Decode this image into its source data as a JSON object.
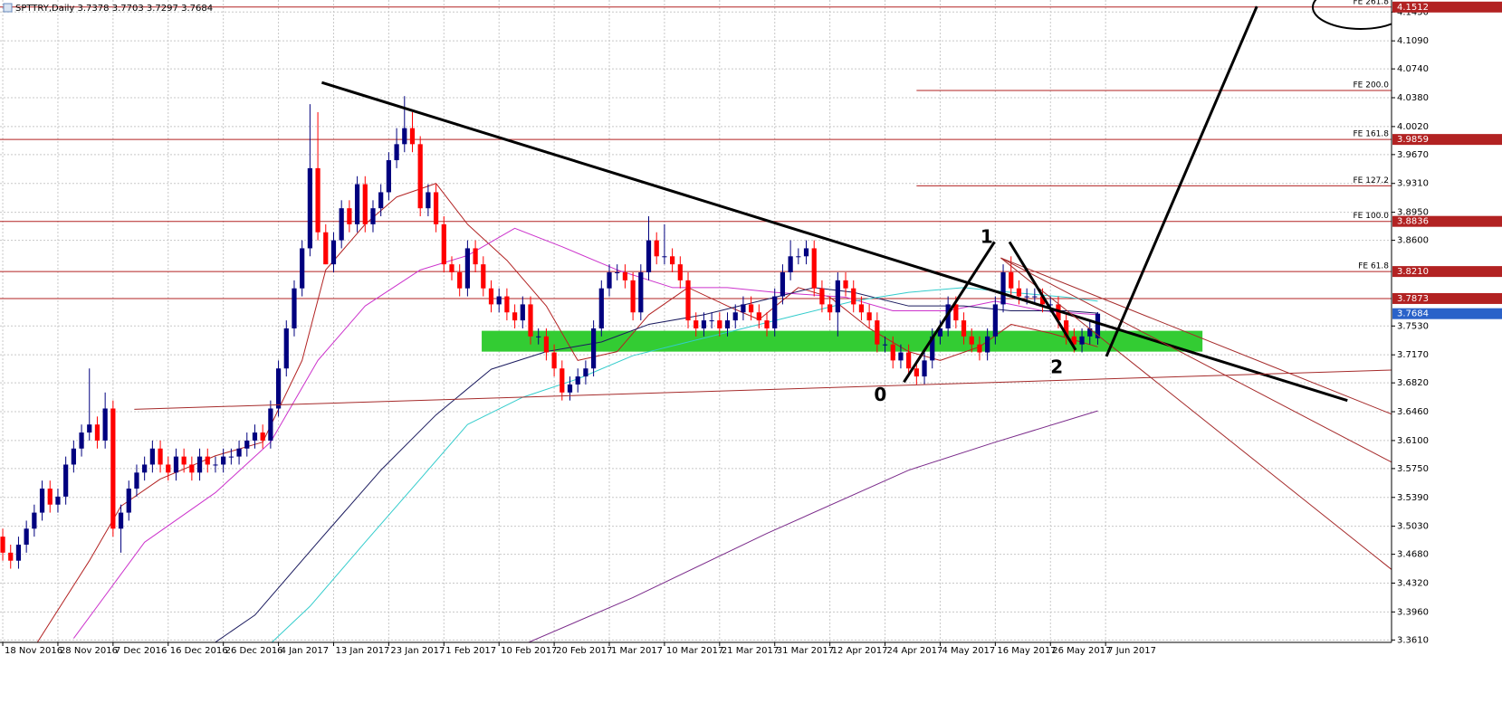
{
  "header": {
    "symbol": "SPTTRY,Daily"
  },
  "chart_data": {
    "type": "candlestick",
    "bull_color": "#00007f",
    "bear_color": "#ff0000",
    "ohlc": [
      [
        3.49,
        3.5,
        3.46,
        3.47
      ],
      [
        3.47,
        3.48,
        3.45,
        3.46
      ],
      [
        3.46,
        3.49,
        3.45,
        3.48
      ],
      [
        3.48,
        3.51,
        3.47,
        3.5
      ],
      [
        3.5,
        3.53,
        3.49,
        3.52
      ],
      [
        3.52,
        3.56,
        3.51,
        3.55
      ],
      [
        3.55,
        3.56,
        3.52,
        3.53
      ],
      [
        3.53,
        3.55,
        3.52,
        3.54
      ],
      [
        3.54,
        3.59,
        3.53,
        3.58
      ],
      [
        3.58,
        3.61,
        3.57,
        3.6
      ],
      [
        3.6,
        3.63,
        3.59,
        3.62
      ],
      [
        3.62,
        3.7,
        3.61,
        3.63
      ],
      [
        3.63,
        3.64,
        3.6,
        3.61
      ],
      [
        3.61,
        3.67,
        3.6,
        3.65
      ],
      [
        3.65,
        3.66,
        3.49,
        3.5
      ],
      [
        3.5,
        3.53,
        3.47,
        3.52
      ],
      [
        3.52,
        3.56,
        3.51,
        3.55
      ],
      [
        3.55,
        3.58,
        3.54,
        3.57
      ],
      [
        3.57,
        3.59,
        3.56,
        3.58
      ],
      [
        3.58,
        3.61,
        3.57,
        3.6
      ],
      [
        3.6,
        3.61,
        3.57,
        3.58
      ],
      [
        3.58,
        3.59,
        3.56,
        3.57
      ],
      [
        3.57,
        3.6,
        3.56,
        3.59
      ],
      [
        3.59,
        3.6,
        3.57,
        3.58
      ],
      [
        3.58,
        3.59,
        3.56,
        3.57
      ],
      [
        3.57,
        3.6,
        3.56,
        3.59
      ],
      [
        3.59,
        3.6,
        3.57,
        3.58
      ],
      [
        3.58,
        3.59,
        3.57,
        3.58
      ],
      [
        3.58,
        3.6,
        3.57,
        3.59
      ],
      [
        3.59,
        3.6,
        3.58,
        3.59
      ],
      [
        3.59,
        3.61,
        3.58,
        3.6
      ],
      [
        3.6,
        3.62,
        3.59,
        3.61
      ],
      [
        3.61,
        3.63,
        3.6,
        3.62
      ],
      [
        3.62,
        3.63,
        3.6,
        3.61
      ],
      [
        3.61,
        3.66,
        3.6,
        3.65
      ],
      [
        3.65,
        3.71,
        3.64,
        3.7
      ],
      [
        3.7,
        3.76,
        3.69,
        3.75
      ],
      [
        3.75,
        3.81,
        3.74,
        3.8
      ],
      [
        3.8,
        3.86,
        3.79,
        3.85
      ],
      [
        3.85,
        4.03,
        3.84,
        3.95
      ],
      [
        3.95,
        4.02,
        3.86,
        3.87
      ],
      [
        3.87,
        3.88,
        3.83,
        3.83
      ],
      [
        3.83,
        3.87,
        3.82,
        3.86
      ],
      [
        3.86,
        3.91,
        3.85,
        3.9
      ],
      [
        3.9,
        3.91,
        3.87,
        3.88
      ],
      [
        3.88,
        3.94,
        3.87,
        3.93
      ],
      [
        3.93,
        3.94,
        3.87,
        3.88
      ],
      [
        3.88,
        3.91,
        3.87,
        3.9
      ],
      [
        3.9,
        3.93,
        3.89,
        3.92
      ],
      [
        3.92,
        3.97,
        3.91,
        3.96
      ],
      [
        3.96,
        4.0,
        3.95,
        3.98
      ],
      [
        3.98,
        4.04,
        3.97,
        4.0
      ],
      [
        4.0,
        4.02,
        3.97,
        3.98
      ],
      [
        3.98,
        3.99,
        3.89,
        3.9
      ],
      [
        3.9,
        3.93,
        3.89,
        3.92
      ],
      [
        3.92,
        3.93,
        3.87,
        3.88
      ],
      [
        3.88,
        3.89,
        3.82,
        3.83
      ],
      [
        3.83,
        3.84,
        3.81,
        3.82
      ],
      [
        3.82,
        3.83,
        3.79,
        3.8
      ],
      [
        3.8,
        3.86,
        3.79,
        3.85
      ],
      [
        3.85,
        3.86,
        3.82,
        3.83
      ],
      [
        3.83,
        3.84,
        3.79,
        3.8
      ],
      [
        3.8,
        3.81,
        3.77,
        3.78
      ],
      [
        3.78,
        3.8,
        3.77,
        3.79
      ],
      [
        3.79,
        3.8,
        3.76,
        3.77
      ],
      [
        3.77,
        3.78,
        3.75,
        3.76
      ],
      [
        3.76,
        3.79,
        3.75,
        3.78
      ],
      [
        3.78,
        3.79,
        3.73,
        3.74
      ],
      [
        3.74,
        3.75,
        3.73,
        3.74
      ],
      [
        3.74,
        3.75,
        3.71,
        3.72
      ],
      [
        3.72,
        3.73,
        3.69,
        3.7
      ],
      [
        3.7,
        3.71,
        3.66,
        3.67
      ],
      [
        3.67,
        3.69,
        3.66,
        3.68
      ],
      [
        3.68,
        3.7,
        3.67,
        3.69
      ],
      [
        3.69,
        3.71,
        3.68,
        3.7
      ],
      [
        3.7,
        3.76,
        3.69,
        3.75
      ],
      [
        3.75,
        3.81,
        3.74,
        3.8
      ],
      [
        3.8,
        3.83,
        3.79,
        3.82
      ],
      [
        3.82,
        3.83,
        3.81,
        3.82
      ],
      [
        3.82,
        3.83,
        3.8,
        3.81
      ],
      [
        3.81,
        3.82,
        3.76,
        3.77
      ],
      [
        3.77,
        3.83,
        3.76,
        3.82
      ],
      [
        3.82,
        3.89,
        3.81,
        3.86
      ],
      [
        3.86,
        3.87,
        3.83,
        3.84
      ],
      [
        3.84,
        3.88,
        3.83,
        3.84
      ],
      [
        3.84,
        3.85,
        3.82,
        3.83
      ],
      [
        3.83,
        3.84,
        3.8,
        3.81
      ],
      [
        3.81,
        3.82,
        3.75,
        3.76
      ],
      [
        3.76,
        3.77,
        3.74,
        3.75
      ],
      [
        3.75,
        3.77,
        3.74,
        3.76
      ],
      [
        3.76,
        3.77,
        3.75,
        3.76
      ],
      [
        3.76,
        3.77,
        3.74,
        3.75
      ],
      [
        3.75,
        3.77,
        3.74,
        3.76
      ],
      [
        3.76,
        3.78,
        3.75,
        3.77
      ],
      [
        3.77,
        3.79,
        3.76,
        3.78
      ],
      [
        3.78,
        3.79,
        3.76,
        3.77
      ],
      [
        3.77,
        3.78,
        3.75,
        3.76
      ],
      [
        3.76,
        3.77,
        3.74,
        3.75
      ],
      [
        3.75,
        3.8,
        3.74,
        3.79
      ],
      [
        3.79,
        3.83,
        3.78,
        3.82
      ],
      [
        3.82,
        3.86,
        3.81,
        3.84
      ],
      [
        3.84,
        3.85,
        3.83,
        3.84
      ],
      [
        3.84,
        3.86,
        3.83,
        3.85
      ],
      [
        3.85,
        3.86,
        3.79,
        3.8
      ],
      [
        3.8,
        3.81,
        3.77,
        3.78
      ],
      [
        3.78,
        3.79,
        3.76,
        3.77
      ],
      [
        3.77,
        3.82,
        3.74,
        3.81
      ],
      [
        3.81,
        3.82,
        3.79,
        3.8
      ],
      [
        3.8,
        3.81,
        3.77,
        3.78
      ],
      [
        3.78,
        3.79,
        3.76,
        3.77
      ],
      [
        3.77,
        3.78,
        3.75,
        3.76
      ],
      [
        3.76,
        3.77,
        3.72,
        3.73
      ],
      [
        3.73,
        3.74,
        3.72,
        3.73
      ],
      [
        3.73,
        3.74,
        3.7,
        3.71
      ],
      [
        3.71,
        3.73,
        3.7,
        3.72
      ],
      [
        3.72,
        3.73,
        3.69,
        3.7
      ],
      [
        3.7,
        3.71,
        3.68,
        3.69
      ],
      [
        3.69,
        3.72,
        3.68,
        3.71
      ],
      [
        3.71,
        3.75,
        3.7,
        3.74
      ],
      [
        3.74,
        3.76,
        3.73,
        3.75
      ],
      [
        3.75,
        3.79,
        3.74,
        3.78
      ],
      [
        3.78,
        3.79,
        3.75,
        3.76
      ],
      [
        3.76,
        3.77,
        3.73,
        3.74
      ],
      [
        3.74,
        3.75,
        3.72,
        3.73
      ],
      [
        3.73,
        3.74,
        3.71,
        3.72
      ],
      [
        3.72,
        3.75,
        3.71,
        3.74
      ],
      [
        3.74,
        3.79,
        3.73,
        3.78
      ],
      [
        3.78,
        3.83,
        3.77,
        3.82
      ],
      [
        3.82,
        3.84,
        3.79,
        3.8
      ],
      [
        3.8,
        3.81,
        3.78,
        3.79
      ],
      [
        3.79,
        3.8,
        3.78,
        3.79
      ],
      [
        3.79,
        3.8,
        3.78,
        3.79
      ],
      [
        3.79,
        3.8,
        3.77,
        3.78
      ],
      [
        3.78,
        3.79,
        3.77,
        3.78
      ],
      [
        3.78,
        3.79,
        3.75,
        3.76
      ],
      [
        3.76,
        3.77,
        3.73,
        3.74
      ],
      [
        3.74,
        3.75,
        3.72,
        3.73
      ],
      [
        3.73,
        3.75,
        3.72,
        3.74
      ],
      [
        3.74,
        3.76,
        3.73,
        3.75
      ],
      [
        3.7378,
        3.7703,
        3.7297,
        3.7684
      ]
    ],
    "last_price_color": "#2a62c9",
    "xlim": [
      -0.35,
      176.3
    ],
    "ylim": [
      3.358,
      4.16
    ],
    "yticks": [
      {
        "value": 3.361,
        "label": "3.3610"
      },
      {
        "value": 3.396,
        "label": "3.3960"
      },
      {
        "value": 3.432,
        "label": "3.4320"
      },
      {
        "value": 3.468,
        "label": "3.4680"
      },
      {
        "value": 3.503,
        "label": "3.5030"
      },
      {
        "value": 3.539,
        "label": "3.5390"
      },
      {
        "value": 3.575,
        "label": "3.5750"
      },
      {
        "value": 3.61,
        "label": "3.6100"
      },
      {
        "value": 3.646,
        "label": "3.6460"
      },
      {
        "value": 3.682,
        "label": "3.6820"
      },
      {
        "value": 3.717,
        "label": "3.7170"
      },
      {
        "value": 3.753,
        "label": "3.7530"
      },
      {
        "value": 3.86,
        "label": "3.8600"
      },
      {
        "value": 3.895,
        "label": "3.8950"
      },
      {
        "value": 3.931,
        "label": "3.9310"
      },
      {
        "value": 3.967,
        "label": "3.9670"
      },
      {
        "value": 4.002,
        "label": "4.0020"
      },
      {
        "value": 4.038,
        "label": "4.0380"
      },
      {
        "value": 4.074,
        "label": "4.0740"
      },
      {
        "value": 4.109,
        "label": "4.1090"
      },
      {
        "value": 4.145,
        "label": "4.1450"
      }
    ],
    "xticks": [
      {
        "value": 0,
        "label": "18 Nov 2016"
      },
      {
        "value": 7,
        "label": "28 Nov 2016"
      },
      {
        "value": 14,
        "label": "7 Dec 2016"
      },
      {
        "value": 21,
        "label": "16 Dec 2016"
      },
      {
        "value": 28,
        "label": "26 Dec 2016"
      },
      {
        "value": 35,
        "label": "4 Jan 2017"
      },
      {
        "value": 42,
        "label": "13 Jan 2017"
      },
      {
        "value": 49,
        "label": "23 Jan 2017"
      },
      {
        "value": 56,
        "label": "1 Feb 2017"
      },
      {
        "value": 63,
        "label": "10 Feb 2017"
      },
      {
        "value": 70,
        "label": "20 Feb 2017"
      },
      {
        "value": 77,
        "label": "1 Mar 2017"
      },
      {
        "value": 84,
        "label": "10 Mar 2017"
      },
      {
        "value": 91,
        "label": "21 Mar 2017"
      },
      {
        "value": 98,
        "label": "31 Mar 2017"
      },
      {
        "value": 105,
        "label": "12 Apr 2017"
      },
      {
        "value": 112,
        "label": "24 Apr 2017"
      },
      {
        "value": 119,
        "label": "4 May 2017"
      },
      {
        "value": 126,
        "label": "16 May 2017"
      },
      {
        "value": 133,
        "label": "26 May 2017"
      },
      {
        "value": 140,
        "label": "7 Jun 2017"
      }
    ],
    "grid": true,
    "series": [
      {
        "color": "#b22222",
        "x": [
          4,
          11,
          15,
          20,
          27,
          33,
          38,
          41,
          46,
          50,
          55,
          59,
          64,
          69,
          73,
          78,
          82,
          87,
          92,
          96,
          101,
          105,
          110,
          115,
          119,
          124,
          128,
          133,
          139
        ],
        "values": [
          3.352,
          3.46,
          3.528,
          3.562,
          3.591,
          3.608,
          3.71,
          3.823,
          3.88,
          3.914,
          3.931,
          3.88,
          3.835,
          3.778,
          3.71,
          3.721,
          3.767,
          3.801,
          3.778,
          3.761,
          3.801,
          3.789,
          3.75,
          3.721,
          3.71,
          3.727,
          3.755,
          3.744,
          3.727
        ]
      },
      {
        "color": "#cc33cc",
        "x": [
          9,
          18,
          27,
          34,
          40,
          46,
          53,
          59,
          65,
          71,
          78,
          85,
          92,
          98,
          107,
          113,
          120,
          126,
          132,
          139
        ],
        "values": [
          3.363,
          3.483,
          3.545,
          3.608,
          3.71,
          3.778,
          3.823,
          3.841,
          3.875,
          3.852,
          3.823,
          3.801,
          3.801,
          3.795,
          3.789,
          3.772,
          3.772,
          3.784,
          3.772,
          3.767
        ]
      },
      {
        "color": "#1a1a5e",
        "x": [
          24,
          32,
          40,
          48,
          55,
          62,
          69,
          76,
          82,
          89,
          96,
          103,
          108,
          115,
          122,
          128,
          135,
          139
        ],
        "values": [
          3.338,
          3.392,
          3.483,
          3.573,
          3.642,
          3.699,
          3.721,
          3.733,
          3.755,
          3.767,
          3.784,
          3.801,
          3.795,
          3.778,
          3.778,
          3.772,
          3.772,
          3.769
        ]
      },
      {
        "color": "#33cccc",
        "x": [
          32,
          39,
          46,
          53,
          59,
          66,
          73,
          80,
          87,
          94,
          101,
          108,
          115,
          122,
          128,
          135,
          139
        ],
        "values": [
          3.338,
          3.403,
          3.483,
          3.562,
          3.63,
          3.664,
          3.687,
          3.716,
          3.733,
          3.75,
          3.767,
          3.784,
          3.795,
          3.801,
          3.795,
          3.789,
          3.784
        ]
      },
      {
        "color": "#7a2a8a",
        "x": [
          62,
          80,
          97,
          115,
          126,
          139
        ],
        "values": [
          3.338,
          3.414,
          3.494,
          3.573,
          3.608,
          3.647
        ]
      }
    ],
    "levels": [
      {
        "label": "FE 261.8",
        "value": 4.1512
      },
      {
        "label": "FE 200.0",
        "value": 4.047,
        "x_start": 116
      },
      {
        "label": "FE 161.8",
        "value": 3.9859
      },
      {
        "label": "FE 127.2",
        "value": 3.928,
        "x_start": 116
      },
      {
        "label": "FE 100.0",
        "value": 3.8836
      },
      {
        "label": "FE 61.8",
        "value": 3.821,
        "value_label": "3.8210"
      },
      {
        "value": 3.7873
      }
    ],
    "level_color": "#b22222",
    "zone": {
      "x": [
        60.8,
        152.3
      ],
      "values": [
        3.721,
        3.747
      ],
      "color": "#33cc33"
    },
    "trendlines": [
      {
        "x": [
          40.5,
          170.7
        ],
        "values": [
          4.057,
          3.66
        ],
        "color": "#000000",
        "width": 3
      },
      {
        "x": [
          16.7,
          176.3
        ],
        "values": [
          3.649,
          3.698
        ],
        "color": "#a52a2a",
        "width": 1
      },
      {
        "x": [
          126.7,
          176.3
        ],
        "values": [
          3.838,
          3.643
        ],
        "color": "#a52a2a",
        "width": 1
      },
      {
        "x": [
          126.7,
          176.3
        ],
        "values": [
          3.838,
          3.583
        ],
        "color": "#a52a2a",
        "width": 1
      },
      {
        "x": [
          126.7,
          176.3
        ],
        "values": [
          3.838,
          3.449
        ],
        "color": "#a52a2a",
        "width": 1
      },
      {
        "x": [
          114.4,
          125.9
        ],
        "values": [
          3.683,
          3.858
        ],
        "color": "#000000",
        "width": 3
      },
      {
        "x": [
          127.8,
          136.2
        ],
        "values": [
          3.858,
          3.723
        ],
        "color": "#000000",
        "width": 3
      },
      {
        "x": [
          140.1,
          159.2
        ],
        "values": [
          3.715,
          4.152
        ],
        "color": "#000000",
        "width": 3
      }
    ],
    "annotations": [
      {
        "text": "0",
        "x": 111.4,
        "y": 3.666
      },
      {
        "text": "1",
        "x": 124.9,
        "y": 3.863
      },
      {
        "text": "2",
        "x": 133.8,
        "y": 3.7
      }
    ]
  }
}
